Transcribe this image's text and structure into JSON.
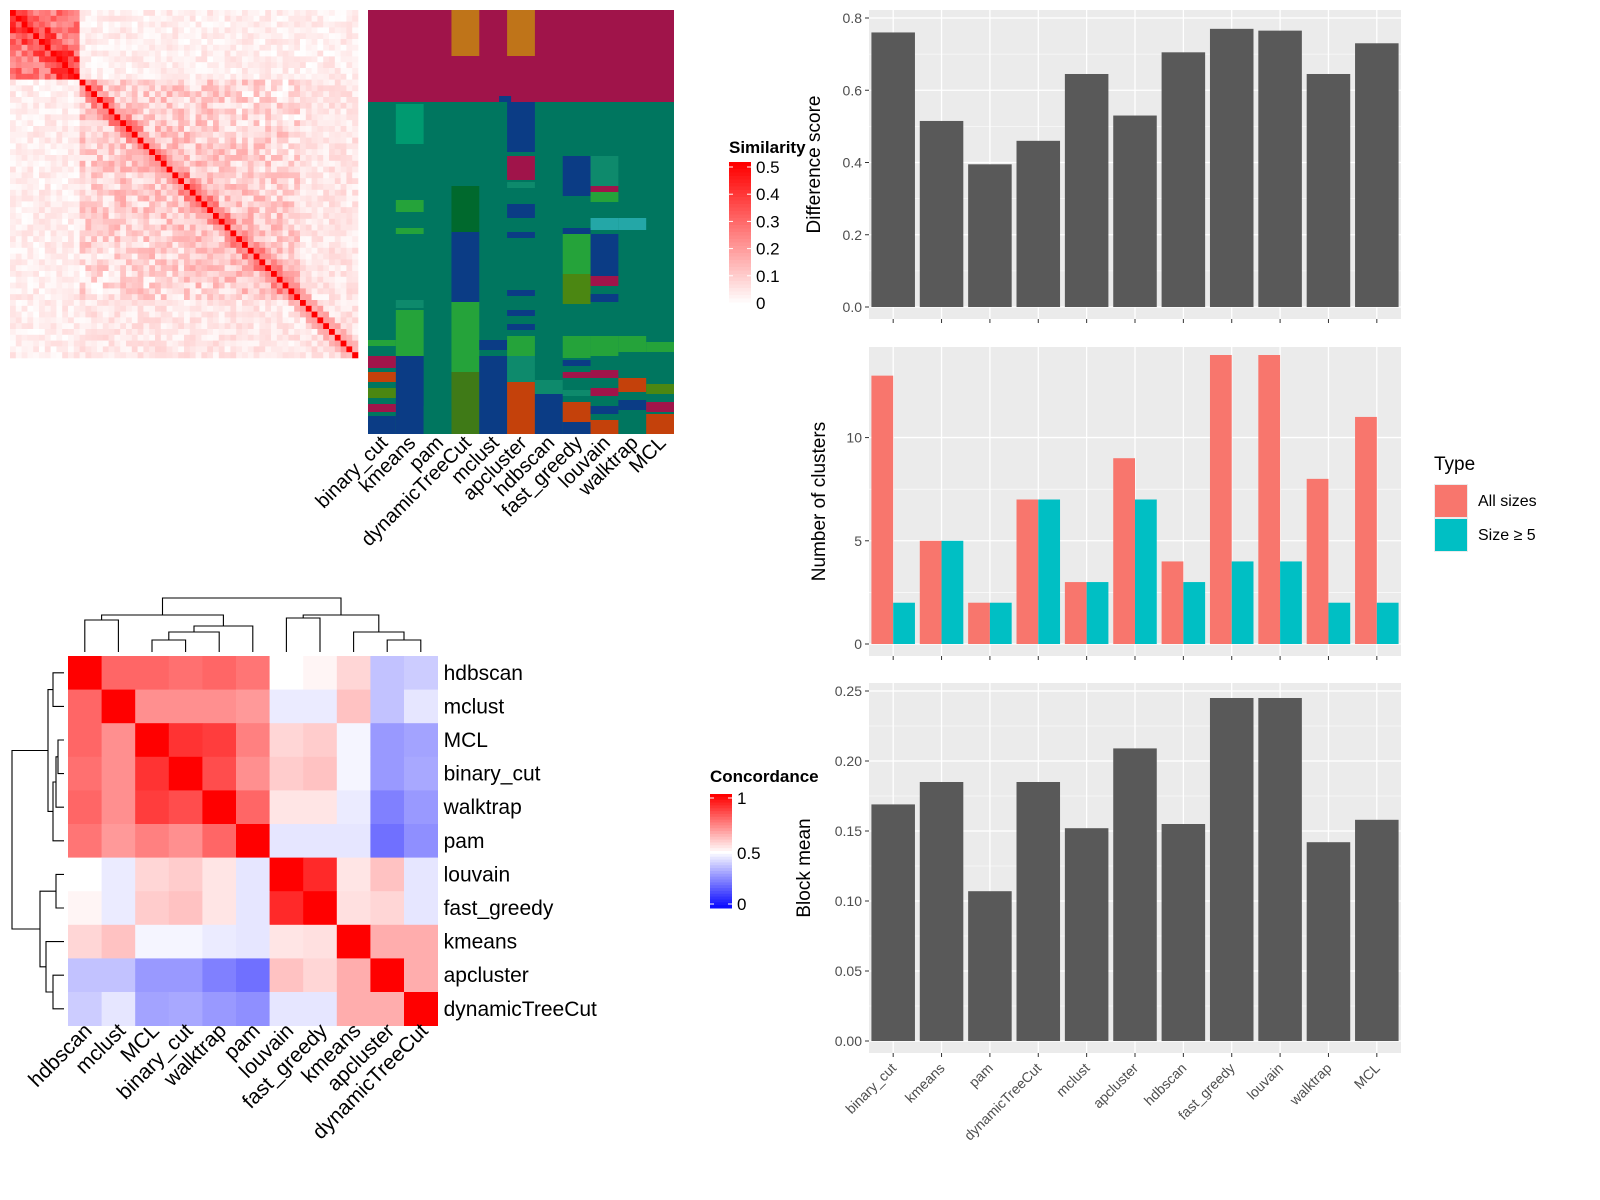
{
  "chart_data": [
    {
      "type": "heatmap",
      "panel": "similarity",
      "legend_title": "Similarity",
      "legend_ticks": [
        "0.5",
        "0.4",
        "0.3",
        "0.2",
        "0.1",
        "0"
      ],
      "ylim": [
        0,
        0.52
      ],
      "size": 60
    },
    {
      "type": "heatmap",
      "panel": "cluster-assignments",
      "columns": [
        "binary_cut",
        "kmeans",
        "pam",
        "dynamicTreeCut",
        "mclust",
        "apcluster",
        "hdbscan",
        "fast_greedy",
        "louvain",
        "walktrap",
        "MCL"
      ]
    },
    {
      "type": "heatmap",
      "panel": "concordance",
      "legend_title": "Concordance",
      "legend_ticks": [
        "1",
        "0.5",
        "0"
      ],
      "rows": [
        "hdbscan",
        "mclust",
        "MCL",
        "binary_cut",
        "walktrap",
        "pam",
        "louvain",
        "fast_greedy",
        "kmeans",
        "apcluster",
        "dynamicTreeCut"
      ],
      "columns": [
        "hdbscan",
        "mclust",
        "MCL",
        "binary_cut",
        "walktrap",
        "pam",
        "louvain",
        "fast_greedy",
        "kmeans",
        "apcluster",
        "dynamicTreeCut"
      ],
      "values": [
        [
          1.0,
          0.8,
          0.8,
          0.78,
          0.8,
          0.77,
          0.5,
          0.52,
          0.58,
          0.38,
          0.4
        ],
        [
          0.8,
          1.0,
          0.72,
          0.72,
          0.72,
          0.7,
          0.46,
          0.46,
          0.62,
          0.38,
          0.45
        ],
        [
          0.8,
          0.72,
          1.0,
          0.9,
          0.88,
          0.75,
          0.58,
          0.6,
          0.48,
          0.3,
          0.32
        ],
        [
          0.78,
          0.72,
          0.9,
          1.0,
          0.85,
          0.72,
          0.6,
          0.62,
          0.48,
          0.3,
          0.33
        ],
        [
          0.8,
          0.72,
          0.88,
          0.85,
          1.0,
          0.8,
          0.55,
          0.55,
          0.46,
          0.25,
          0.3
        ],
        [
          0.77,
          0.7,
          0.75,
          0.72,
          0.8,
          1.0,
          0.45,
          0.45,
          0.45,
          0.22,
          0.28
        ],
        [
          0.5,
          0.46,
          0.58,
          0.6,
          0.55,
          0.45,
          1.0,
          0.92,
          0.55,
          0.62,
          0.45
        ],
        [
          0.52,
          0.46,
          0.6,
          0.62,
          0.55,
          0.45,
          0.92,
          1.0,
          0.56,
          0.58,
          0.45
        ],
        [
          0.58,
          0.62,
          0.48,
          0.48,
          0.46,
          0.45,
          0.55,
          0.56,
          1.0,
          0.66,
          0.66
        ],
        [
          0.38,
          0.38,
          0.3,
          0.3,
          0.25,
          0.22,
          0.62,
          0.58,
          0.66,
          1.0,
          0.66
        ],
        [
          0.4,
          0.45,
          0.32,
          0.33,
          0.3,
          0.28,
          0.45,
          0.45,
          0.66,
          0.66,
          1.0
        ]
      ]
    },
    {
      "type": "bar",
      "categories": [
        "binary_cut",
        "kmeans",
        "pam",
        "dynamicTreeCut",
        "mclust",
        "apcluster",
        "hdbscan",
        "fast_greedy",
        "louvain",
        "walktrap",
        "MCL"
      ],
      "values": [
        0.76,
        0.515,
        0.395,
        0.46,
        0.645,
        0.53,
        0.705,
        0.77,
        0.765,
        0.645,
        0.73
      ],
      "ylabel": "Difference score",
      "ylim": [
        0,
        0.8
      ],
      "yticks": [
        "0.0",
        "0.2",
        "0.4",
        "0.6",
        "0.8"
      ],
      "ytick_values": [
        0,
        0.2,
        0.4,
        0.6,
        0.8
      ]
    },
    {
      "type": "bar",
      "categories": [
        "binary_cut",
        "kmeans",
        "pam",
        "dynamicTreeCut",
        "mclust",
        "apcluster",
        "hdbscan",
        "fast_greedy",
        "louvain",
        "walktrap",
        "MCL"
      ],
      "series": [
        {
          "name": "All sizes",
          "values": [
            13,
            5,
            2,
            7,
            3,
            9,
            4,
            14,
            14,
            8,
            11
          ]
        },
        {
          "name": "Size ≥ 5",
          "values": [
            2,
            5,
            2,
            7,
            3,
            7,
            3,
            4,
            4,
            2,
            2
          ]
        }
      ],
      "ylabel": "Number of clusters",
      "ylim": [
        0,
        14
      ],
      "yticks": [
        "0",
        "5",
        "10"
      ],
      "ytick_values": [
        0,
        5,
        10
      ],
      "legend_title": "Type",
      "legend_position": "right"
    },
    {
      "type": "bar",
      "categories": [
        "binary_cut",
        "kmeans",
        "pam",
        "dynamicTreeCut",
        "mclust",
        "apcluster",
        "hdbscan",
        "fast_greedy",
        "louvain",
        "walktrap",
        "MCL"
      ],
      "values": [
        0.169,
        0.185,
        0.107,
        0.185,
        0.152,
        0.209,
        0.155,
        0.245,
        0.245,
        0.142,
        0.158
      ],
      "ylabel": "Block mean",
      "ylim": [
        0,
        0.25
      ],
      "yticks": [
        "0.00",
        "0.05",
        "0.10",
        "0.15",
        "0.20",
        "0.25"
      ],
      "ytick_values": [
        0,
        0.05,
        0.1,
        0.15,
        0.2,
        0.25
      ]
    }
  ],
  "colors": {
    "bar_gray": "#595959",
    "panel_bg": "#ebebeb",
    "series_all": "#f8766d",
    "series_size": "#00bfc4"
  }
}
